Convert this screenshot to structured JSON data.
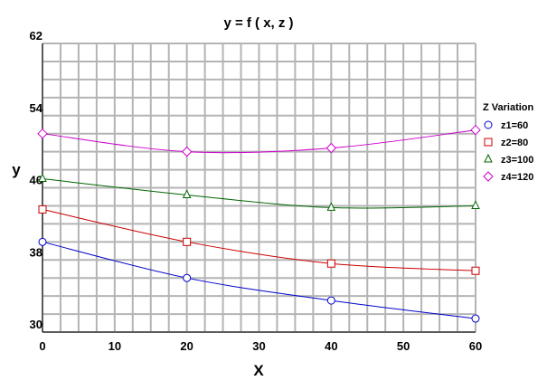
{
  "chart_data": {
    "type": "line",
    "title": "y = f ( x, z )",
    "xlabel": "X",
    "ylabel": "y",
    "xlim": [
      0,
      60
    ],
    "ylim": [
      30,
      62
    ],
    "x_ticks": [
      0,
      10,
      20,
      30,
      40,
      50,
      60
    ],
    "y_ticks": [
      30,
      38,
      46,
      54,
      62
    ],
    "grid": true,
    "legend_title": "Z Variation",
    "legend_position": "right",
    "series": [
      {
        "name": "z1=60",
        "color": "#0000cc",
        "marker": "circle",
        "x": [
          0,
          20,
          40,
          60
        ],
        "y": [
          40.0,
          36.0,
          33.5,
          31.5
        ]
      },
      {
        "name": "z2=80",
        "color": "#cc0000",
        "marker": "square",
        "x": [
          0,
          20,
          40,
          60
        ],
        "y": [
          43.6,
          40.0,
          37.6,
          36.8
        ]
      },
      {
        "name": "z3=100",
        "color": "#006600",
        "marker": "triangle",
        "x": [
          0,
          20,
          40,
          60
        ],
        "y": [
          47.0,
          45.2,
          43.8,
          44.0
        ]
      },
      {
        "name": "z4=120",
        "color": "#cc00cc",
        "marker": "diamond",
        "x": [
          0,
          20,
          40,
          60
        ],
        "y": [
          52.0,
          50.0,
          50.4,
          52.4
        ]
      }
    ]
  }
}
